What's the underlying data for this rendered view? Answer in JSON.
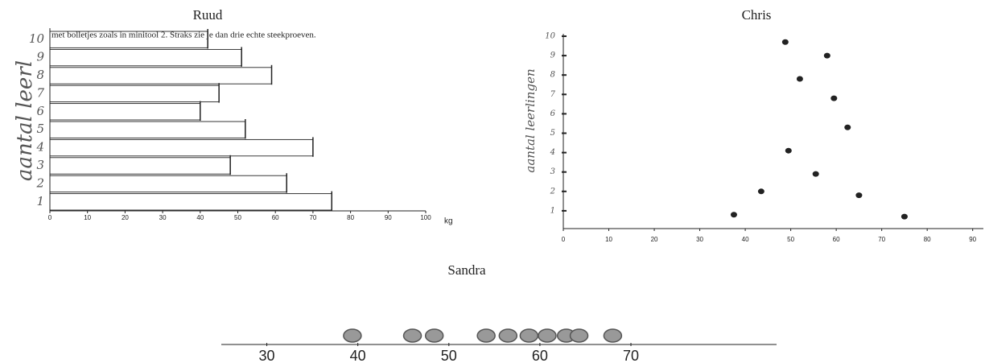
{
  "chart_data": [
    {
      "type": "hbar",
      "title": "Ruud",
      "annotation": "met bolletjes zoals in minitool 2. Straks zie je dan drie echte steekproeven.",
      "y_label": "aantal leerl",
      "x_label": "kg",
      "categories": [
        "1",
        "2",
        "3",
        "4",
        "5",
        "6",
        "7",
        "8",
        "9",
        "10"
      ],
      "values": [
        75,
        63,
        48,
        70,
        52,
        40,
        45,
        59,
        51,
        42
      ],
      "color": "#222",
      "xlim": [
        0,
        100
      ],
      "xticks": [
        0,
        10,
        20,
        30,
        40,
        50,
        60,
        70,
        80,
        90,
        100
      ]
    },
    {
      "type": "scatter",
      "title": "Chris",
      "y_label": "aantal leerlingen",
      "x": [
        37.5,
        43.5,
        49.5,
        48.8,
        52,
        55.5,
        58,
        59.5,
        62.5,
        65,
        75
      ],
      "values": [
        0.8,
        2,
        4.1,
        9.7,
        7.8,
        2.9,
        9,
        6.8,
        5.3,
        1.8,
        0.7
      ],
      "color": "#222",
      "xlim": [
        0,
        92
      ],
      "xticks": [
        0,
        10,
        20,
        30,
        40,
        50,
        60,
        70,
        80,
        90
      ],
      "ylim": [
        0,
        10
      ],
      "yticks": [
        1,
        2,
        3,
        4,
        5,
        6,
        7,
        8,
        9,
        10
      ]
    },
    {
      "type": "dotplot",
      "title": "Sandra",
      "x": [
        39.4,
        46,
        48.4,
        54.1,
        56.5,
        58.8,
        60.8,
        62.9,
        64.3,
        68
      ],
      "color": "#999",
      "xlim": [
        25,
        86
      ],
      "xticks": [
        30,
        40,
        50,
        60,
        70
      ]
    }
  ]
}
